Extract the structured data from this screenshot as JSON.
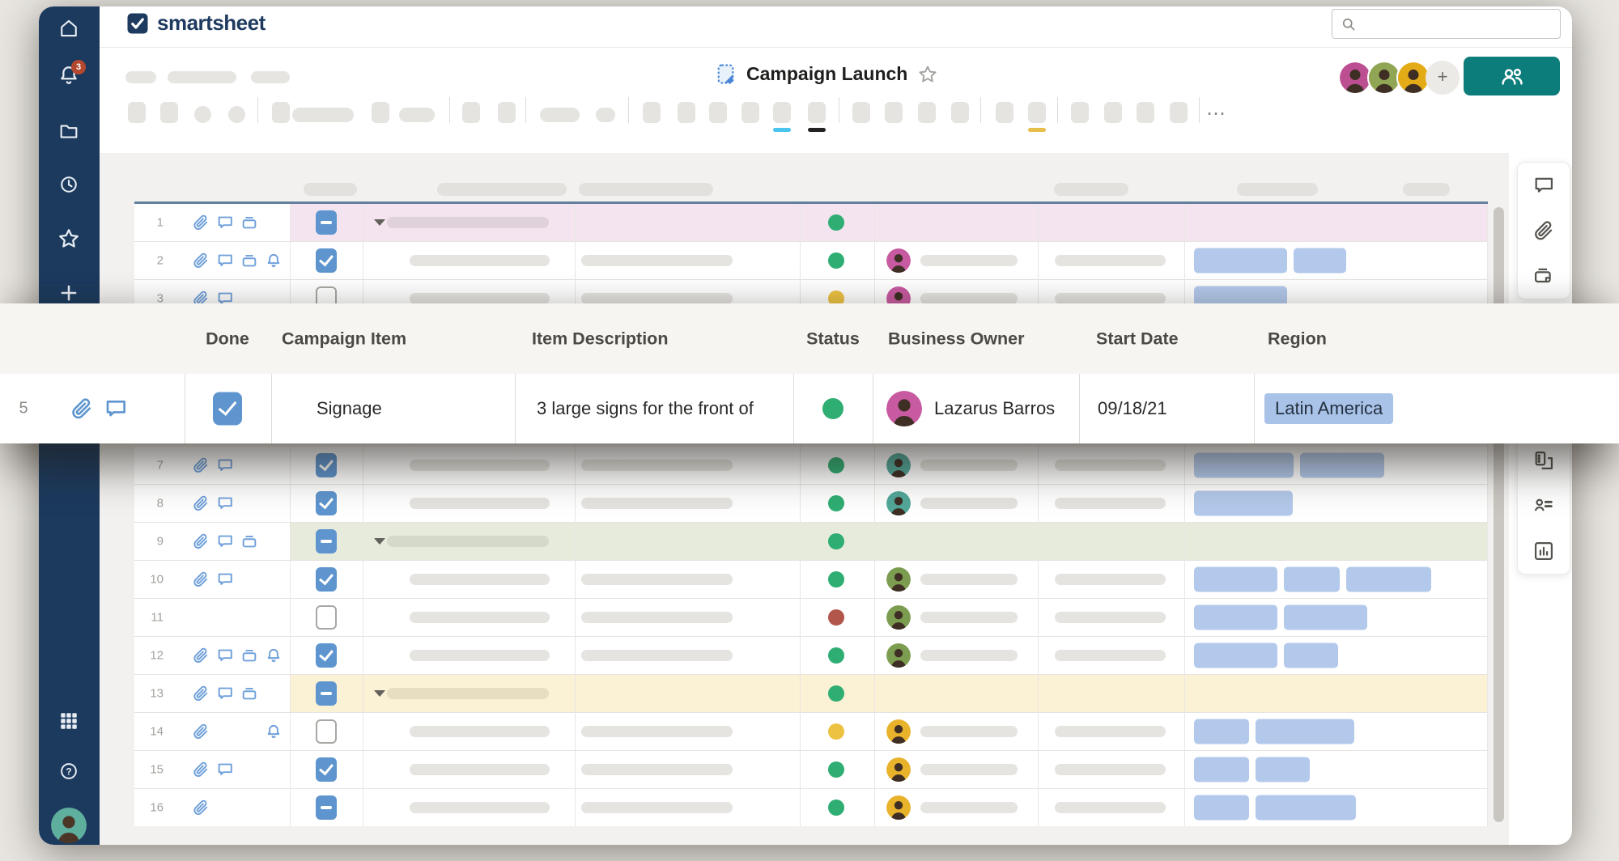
{
  "app": {
    "logo_text": "smartsheet"
  },
  "search": {
    "value": "",
    "placeholder": ""
  },
  "sidebar": {
    "notification_count": "3",
    "items": [
      "home",
      "notifications",
      "browse",
      "recents",
      "favorites",
      "create"
    ],
    "bottom_items": [
      "apps",
      "help",
      "account"
    ]
  },
  "header": {
    "sheet_title": "Campaign Launch"
  },
  "toolbar": {
    "more_icon": "⋯"
  },
  "share": {
    "collaborator_avatars": 3,
    "add_label": "+"
  },
  "callout": {
    "columns": [
      "Done",
      "Campaign Item",
      "Item Description",
      "Status",
      "Business Owner",
      "Start Date",
      "Region"
    ],
    "row": {
      "number": "5",
      "row_icons": [
        "attachment",
        "comment"
      ],
      "done": "checked",
      "campaign_item": "Signage",
      "item_description": "3 large signs for the front of",
      "status": "green",
      "business_owner": "Lazarus Barros",
      "start_date": "09/18/21",
      "region": "Latin America"
    }
  },
  "grid": {
    "rows": [
      {
        "num": "1",
        "parent": true,
        "tint": "pink",
        "icons": [
          "attachment",
          "comment",
          "proof",
          null
        ],
        "check": "mixed",
        "status": "green",
        "avatar": null,
        "pills": []
      },
      {
        "num": "2",
        "parent": false,
        "tint": null,
        "icons": [
          "attachment",
          "comment",
          "proof",
          "bell"
        ],
        "check": "checked",
        "status": "green",
        "avatar": "pink",
        "pills": [
          115,
          65
        ]
      },
      {
        "num": "3",
        "parent": false,
        "tint": null,
        "icons": [
          "attachment",
          "comment",
          null,
          null
        ],
        "check": "unchecked",
        "status": "yellow",
        "avatar": "pink",
        "pills": [
          115
        ]
      },
      {
        "num": "7",
        "parent": false,
        "tint": null,
        "icons": [
          "attachment",
          "comment",
          null,
          null
        ],
        "check": "checked",
        "status": "green",
        "avatar": "teal",
        "pills": [
          123,
          104
        ]
      },
      {
        "num": "8",
        "parent": false,
        "tint": null,
        "icons": [
          "attachment",
          "comment",
          null,
          null
        ],
        "check": "checked",
        "status": "green",
        "avatar": "teal",
        "pills": [
          122
        ]
      },
      {
        "num": "9",
        "parent": true,
        "tint": "green",
        "icons": [
          "attachment",
          "comment",
          "proof",
          null
        ],
        "check": "mixed",
        "status": "green",
        "avatar": null,
        "pills": []
      },
      {
        "num": "10",
        "parent": false,
        "tint": null,
        "icons": [
          "attachment",
          "comment",
          null,
          null
        ],
        "check": "checked",
        "status": "green",
        "avatar": "green",
        "pills": [
          103,
          69,
          105
        ]
      },
      {
        "num": "11",
        "parent": false,
        "tint": null,
        "icons": [
          null,
          null,
          null,
          null
        ],
        "check": "unchecked",
        "status": "red",
        "avatar": "green",
        "pills": [
          103,
          103
        ]
      },
      {
        "num": "12",
        "parent": false,
        "tint": null,
        "icons": [
          "attachment",
          "comment",
          "proof",
          "bell"
        ],
        "check": "checked",
        "status": "green",
        "avatar": "green",
        "pills": [
          103,
          67
        ]
      },
      {
        "num": "13",
        "parent": true,
        "tint": "yellow",
        "icons": [
          "attachment",
          "comment",
          "proof",
          null
        ],
        "check": "mixed",
        "status": "green",
        "avatar": null,
        "pills": []
      },
      {
        "num": "14",
        "parent": false,
        "tint": null,
        "icons": [
          "attachment",
          null,
          null,
          "bell"
        ],
        "check": "unchecked",
        "status": "yellow",
        "avatar": "yellow",
        "pills": [
          68,
          122
        ]
      },
      {
        "num": "15",
        "parent": false,
        "tint": null,
        "icons": [
          "attachment",
          "comment",
          null,
          null
        ],
        "check": "checked",
        "status": "green",
        "avatar": "yellow",
        "pills": [
          68,
          67
        ]
      },
      {
        "num": "16",
        "parent": false,
        "tint": null,
        "icons": [
          "attachment",
          null,
          null,
          null
        ],
        "check": "mixed",
        "status": "green",
        "avatar": "yellow",
        "pills": [
          68,
          124
        ]
      }
    ]
  },
  "right_panel": {
    "top_icons": [
      "comments",
      "attachments",
      "proofs"
    ],
    "bottom_icons": [
      "sheet-summary",
      "collaborators",
      "charts"
    ]
  },
  "colors": {
    "navy": "#1C3A5E",
    "teal": "#0C7D7B",
    "accent_blue": "#5E95CF",
    "status_green": "#2FAE73",
    "status_yellow": "#EDC243",
    "status_red": "#B2564C",
    "tag_blue": "#B3C9EB",
    "tint_pink": "#F3E4F0",
    "tint_green": "#E7EBDC",
    "tint_yellow": "#FBF1D4",
    "underline_cyan": "#49C5ED",
    "underline_black": "#222222",
    "underline_yellow": "#E8BE4A",
    "badge_red": "#B5492F"
  },
  "avatar_colors": {
    "pink": "#C75AA0",
    "teal": "#52A89A",
    "green": "#7C9D50",
    "yellow": "#E8B22B",
    "top_row": [
      "#BC4F92",
      "#90A654",
      "#E3AC17"
    ],
    "sidebar_user": "#5FAF9F"
  }
}
